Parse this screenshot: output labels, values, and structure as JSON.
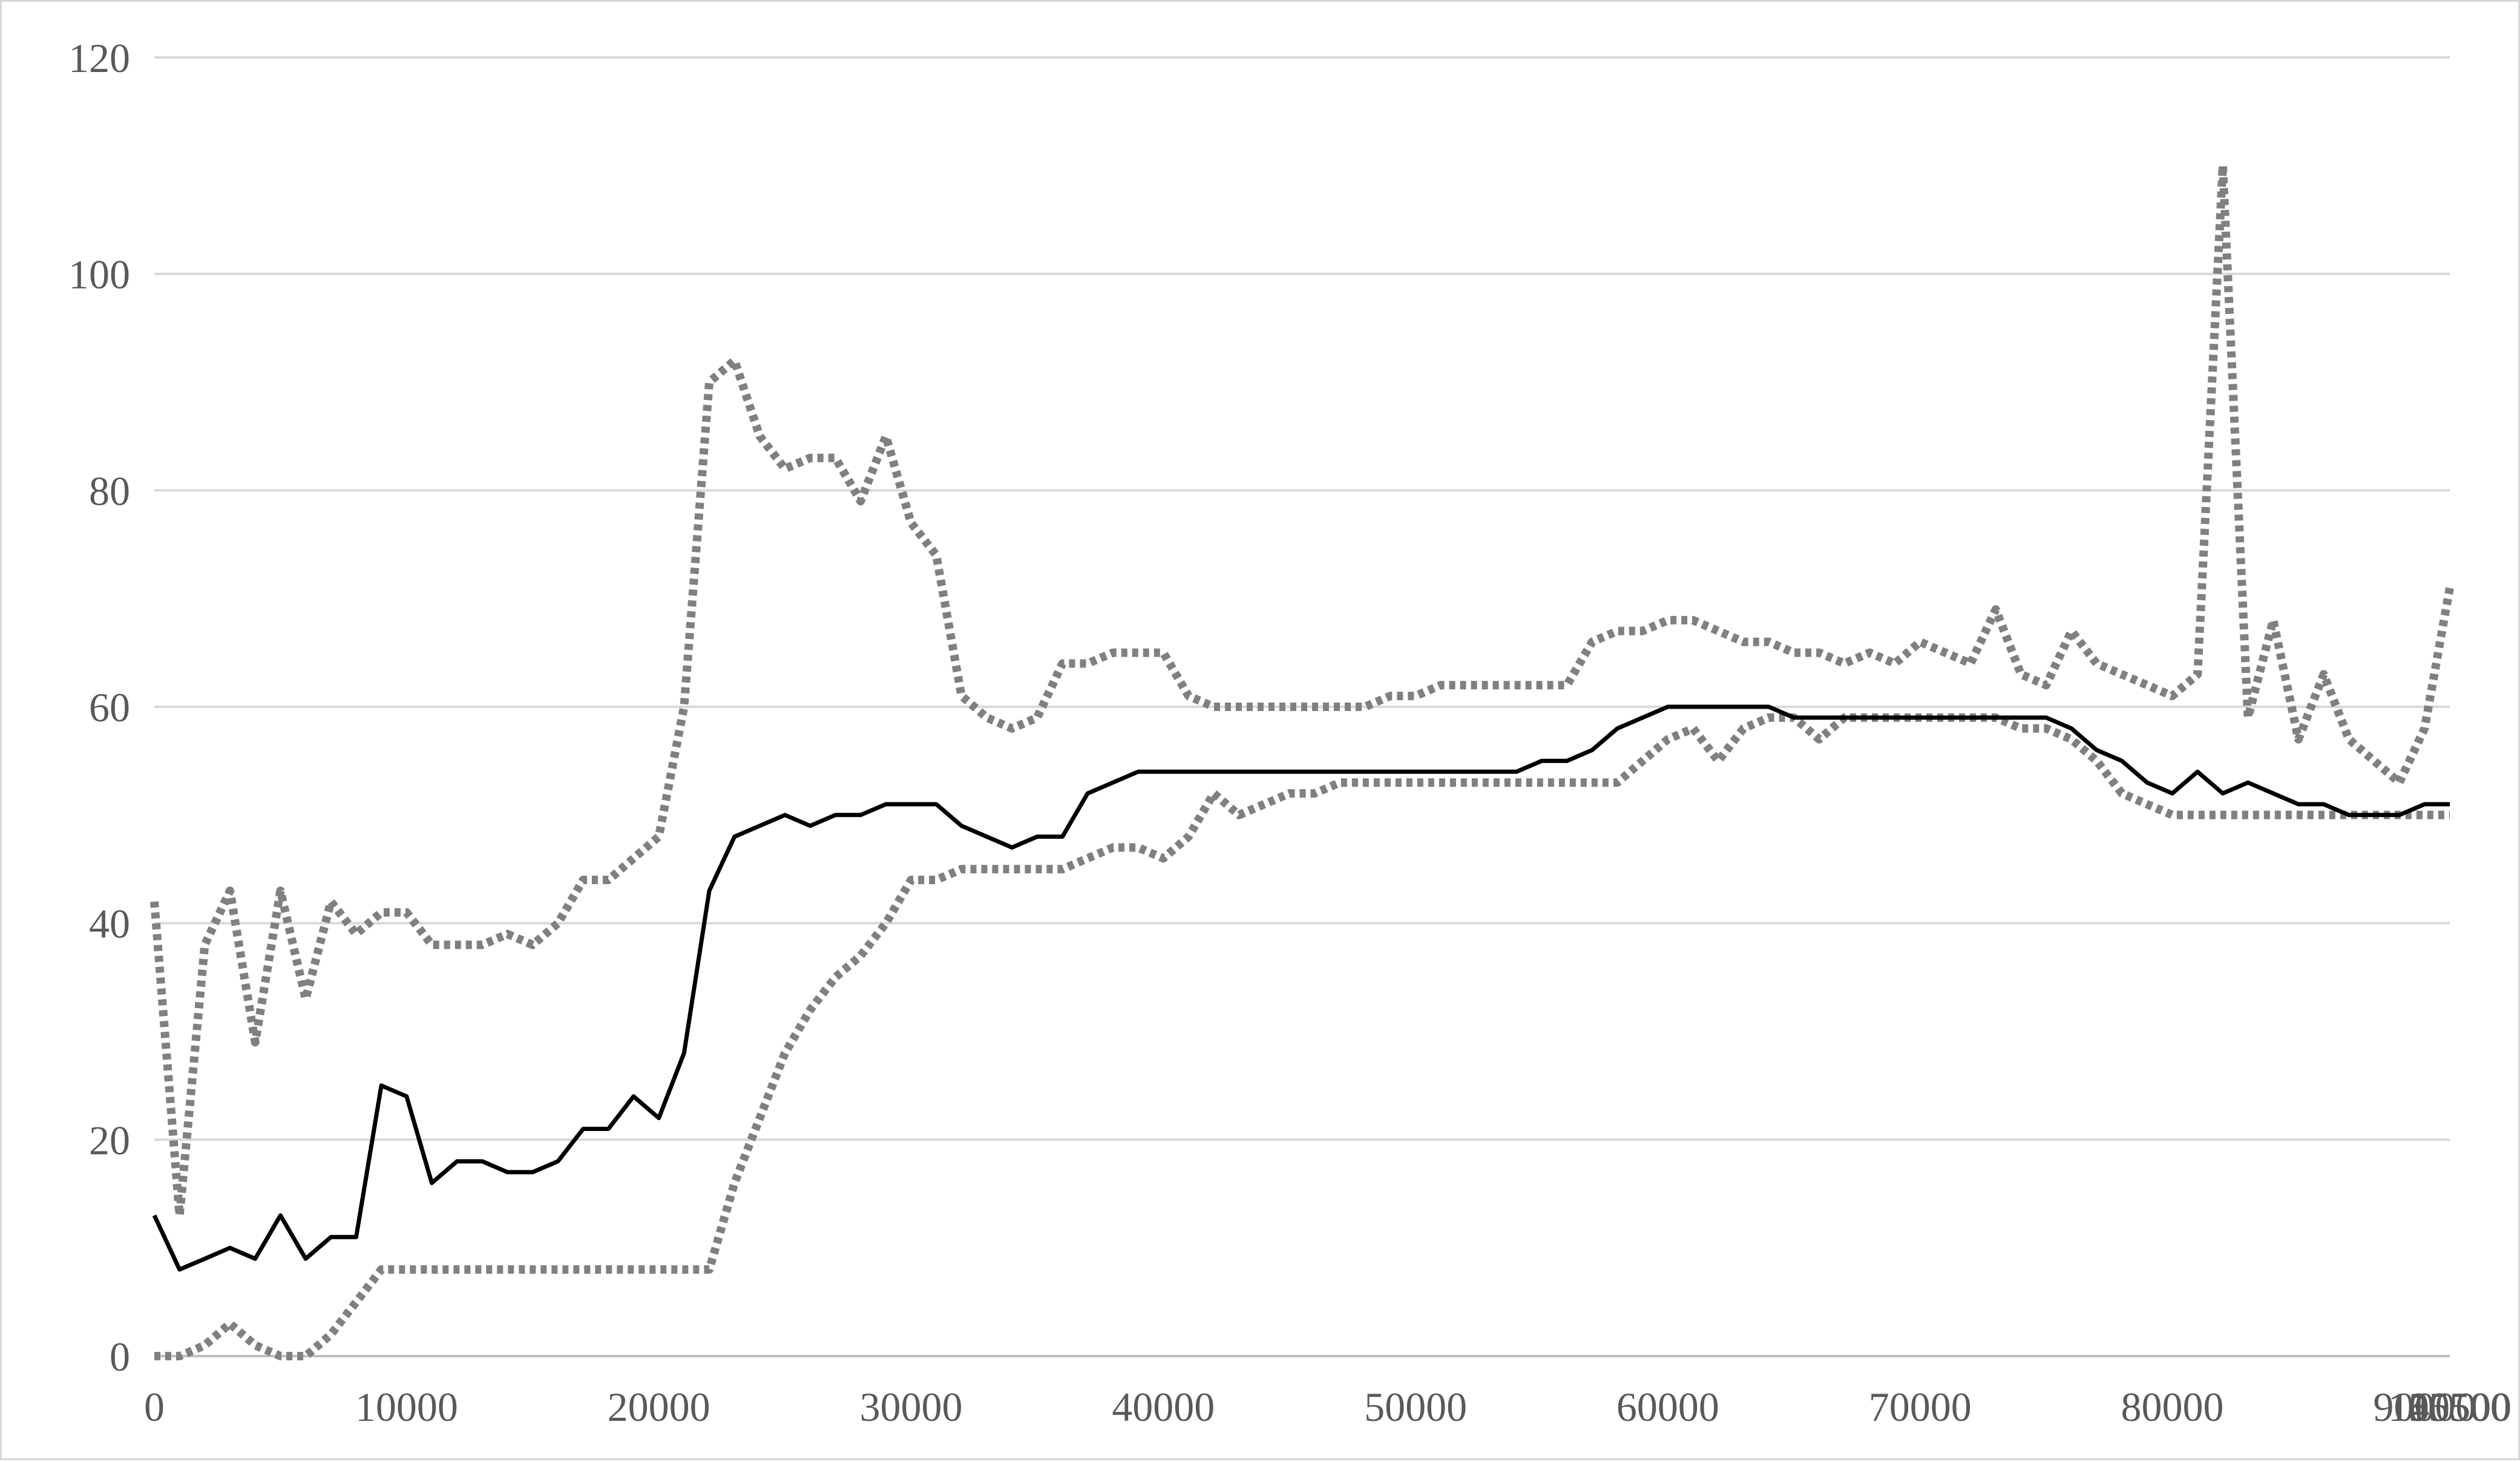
{
  "chart_data": {
    "type": "line",
    "title": "",
    "xlabel": "",
    "ylabel": "",
    "ylim": [
      0,
      120
    ],
    "y_ticks": [
      0,
      20,
      40,
      60,
      80,
      100,
      120
    ],
    "x_tick_labels": [
      "0",
      "10000",
      "20000",
      "30000",
      "40000",
      "50000",
      "60000",
      "70000",
      "80000",
      "90000",
      "100500",
      "115500",
      "130500",
      "145500"
    ],
    "grid": "horizontal",
    "legend": "none",
    "colors": {
      "mean": "#000000",
      "upper": "#808080",
      "lower": "#808080",
      "grid": "#d9d9d9",
      "axis": "#bfbfbf",
      "tick_text": "#595959"
    },
    "x": [
      0,
      1000,
      2000,
      3000,
      4000,
      5000,
      6000,
      7000,
      8000,
      9000,
      10000,
      11000,
      12000,
      13000,
      14000,
      15000,
      16000,
      17000,
      18000,
      19000,
      20000,
      21000,
      22000,
      23000,
      24000,
      25000,
      26000,
      27000,
      28000,
      29000,
      30000,
      31000,
      32000,
      33000,
      34000,
      35000,
      36000,
      37000,
      38000,
      39000,
      40000,
      42000,
      44000,
      46000,
      48000,
      50000,
      52000,
      54000,
      56000,
      58000,
      60000,
      62000,
      64000,
      65000,
      66000,
      68000,
      70000,
      71000,
      72000,
      73000,
      74000,
      75000,
      76000,
      77000,
      78000,
      80000,
      82000,
      84000,
      86000,
      88000,
      90000,
      92000,
      94000,
      96000,
      98000,
      100500,
      103500,
      106500,
      109500,
      112500,
      115500,
      118500,
      121500,
      124500,
      127500,
      130500,
      133500,
      136500,
      139500,
      142500,
      145500,
      148500
    ],
    "series": [
      {
        "name": "",
        "style": "solid",
        "values": [
          13,
          8,
          9,
          10,
          9,
          13,
          9,
          11,
          11,
          25,
          24,
          16,
          18,
          18,
          17,
          17,
          18,
          21,
          21,
          24,
          22,
          28,
          43,
          48,
          49,
          50,
          49,
          50,
          50,
          51,
          51,
          51,
          49,
          48,
          47,
          48,
          48,
          52,
          53,
          54,
          54,
          54,
          54,
          54,
          54,
          54,
          54,
          54,
          54,
          54,
          54,
          54,
          54,
          54,
          54,
          55,
          55,
          56,
          58,
          59,
          60,
          60,
          60,
          60,
          60,
          59,
          59,
          59,
          59,
          59,
          59,
          59,
          59,
          59,
          59,
          59,
          58,
          56,
          55,
          53,
          52,
          54,
          52,
          53,
          52,
          51,
          51,
          50,
          50,
          50,
          51,
          51
        ]
      },
      {
        "name": "",
        "style": "dotted",
        "values": [
          42,
          13,
          38,
          43,
          29,
          43,
          33,
          42,
          39,
          41,
          41,
          38,
          38,
          38,
          39,
          38,
          40,
          44,
          44,
          46,
          48,
          60,
          90,
          92,
          85,
          82,
          83,
          83,
          79,
          85,
          77,
          74,
          61,
          59,
          58,
          59,
          64,
          64,
          65,
          65,
          65,
          61,
          60,
          60,
          60,
          60,
          60,
          60,
          60,
          61,
          61,
          62,
          62,
          62,
          62,
          62,
          62,
          66,
          67,
          67,
          68,
          68,
          67,
          66,
          66,
          65,
          65,
          64,
          65,
          64,
          66,
          65,
          64,
          69,
          63,
          62,
          67,
          64,
          63,
          62,
          61,
          63,
          110,
          59,
          68,
          57,
          63,
          57,
          55,
          53,
          58,
          71
        ]
      },
      {
        "name": "",
        "style": "dotted",
        "values": [
          0,
          0,
          1,
          3,
          1,
          0,
          0,
          2,
          5,
          8,
          8,
          8,
          8,
          8,
          8,
          8,
          8,
          8,
          8,
          8,
          8,
          8,
          8,
          16,
          22,
          28,
          32,
          35,
          37,
          40,
          44,
          44,
          45,
          45,
          45,
          45,
          45,
          46,
          47,
          47,
          46,
          48,
          52,
          50,
          51,
          52,
          52,
          53,
          53,
          53,
          53,
          53,
          53,
          53,
          53,
          53,
          53,
          53,
          53,
          55,
          57,
          58,
          55,
          58,
          59,
          59,
          57,
          59,
          59,
          59,
          59,
          59,
          59,
          59,
          58,
          58,
          57,
          55,
          52,
          51,
          50,
          50,
          50,
          50,
          50,
          50,
          50,
          50,
          50,
          50,
          50,
          50
        ]
      }
    ]
  }
}
